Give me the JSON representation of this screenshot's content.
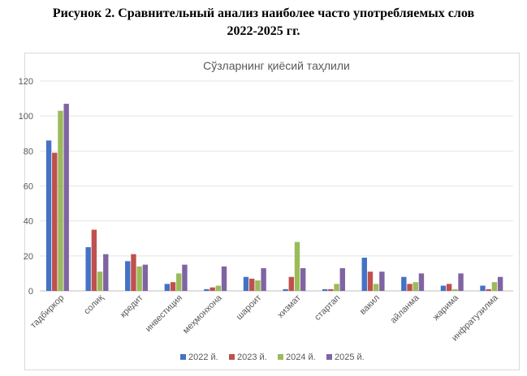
{
  "caption": {
    "line1": "Рисунок 2. Сравнительный анализ наиболее часто употребляемых слов",
    "line2": "2022-2025 гг."
  },
  "chart_data": {
    "type": "bar",
    "title": "Сўзларнинг қиёсий таҳлили",
    "xlabel": "",
    "ylabel": "",
    "ylim": [
      0,
      120
    ],
    "yticks": [
      "0",
      "20",
      "40",
      "60",
      "80",
      "100",
      "120"
    ],
    "grid": true,
    "legend_position": "bottom",
    "categories": [
      "тадбиркор",
      "солиқ",
      "кредит",
      "инвестиция",
      "меҳмонхона",
      "шароит",
      "хизмат",
      "стартап",
      "вакил",
      "айланма",
      "жарима",
      "инфратузилма"
    ],
    "series": [
      {
        "name": "2022 й.",
        "color": "#4472c4",
        "values": [
          86,
          25,
          17,
          4,
          1,
          8,
          1,
          1,
          19,
          8,
          3,
          3
        ]
      },
      {
        "name": "2023 й.",
        "color": "#c0504d",
        "values": [
          79,
          35,
          21,
          5,
          2,
          7,
          8,
          1,
          11,
          4,
          4,
          1
        ]
      },
      {
        "name": "2024 й.",
        "color": "#9bbb59",
        "values": [
          103,
          11,
          14,
          10,
          3,
          6,
          28,
          4,
          4,
          5,
          1,
          5
        ]
      },
      {
        "name": "2025 й.",
        "color": "#8064a2",
        "values": [
          107,
          21,
          15,
          15,
          14,
          13,
          13,
          13,
          11,
          10,
          10,
          8
        ]
      }
    ]
  }
}
